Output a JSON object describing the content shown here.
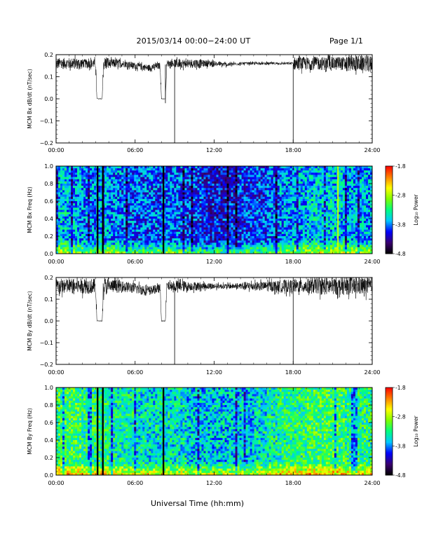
{
  "header": {
    "title": "2015/03/14  00:00−24:00 UT",
    "page": "Page 1/1"
  },
  "xaxis": {
    "label": "Universal Time (hh:mm)",
    "ticks": [
      "00:00",
      "06:00",
      "12:00",
      "18:00",
      "24:00"
    ]
  },
  "colorbar": {
    "label": "Log₁₀ Power",
    "ticks": [
      "-1.8",
      "-2.8",
      "-3.8",
      "-4.8"
    ],
    "range": [
      -4.8,
      -1.8
    ],
    "colors": [
      "#000000",
      "#3a0070",
      "#0000ff",
      "#00c8ff",
      "#00ff80",
      "#80ff00",
      "#ffff00",
      "#ff8000",
      "#ff0000"
    ]
  },
  "chart_data": [
    {
      "type": "line",
      "ylabel": "MCM Bx dB/dt (nT/sec)",
      "xlim": [
        0,
        24
      ],
      "ylim": [
        -0.2,
        0.2
      ],
      "yticks": [
        "0.2",
        "0.1",
        "0.0",
        "−0.1",
        "−0.2"
      ],
      "series": [
        {
          "baseline": 0.155,
          "x": [
            0,
            1,
            2,
            3,
            3.1,
            3.5,
            3.6,
            4,
            5,
            6,
            7,
            7.9,
            8.0,
            8.3,
            8.4,
            9,
            10,
            11,
            12,
            13,
            14,
            15,
            16,
            17,
            18,
            19,
            20,
            21,
            22,
            23,
            24
          ],
          "y": [
            0.16,
            0.16,
            0.16,
            0.16,
            0.0,
            0.0,
            0.16,
            0.16,
            0.16,
            0.15,
            0.14,
            0.15,
            0.0,
            0.0,
            0.16,
            0.16,
            0.16,
            0.16,
            0.16,
            0.155,
            0.16,
            0.16,
            0.16,
            0.16,
            0.16,
            0.16,
            0.16,
            0.16,
            0.16,
            0.16,
            0.16
          ],
          "spikes": [
            {
              "x": 9.0,
              "y": -0.2
            },
            {
              "x": 18.0,
              "y": -0.2
            },
            {
              "x": 8.3,
              "y": -0.02
            }
          ],
          "noise_amplitude": [
            0.025,
            0.025,
            0.02,
            0.03,
            0.02,
            0.015,
            0.015,
            0.015,
            0.015,
            0.02,
            0.02,
            0.015,
            0.01,
            0.008,
            0.006,
            0.006,
            0.006,
            0.006,
            0.03,
            0.03,
            0.03,
            0.03,
            0.035,
            0.035
          ]
        }
      ]
    },
    {
      "type": "heatmap",
      "ylabel": "MCM Bx Freq (Hz)",
      "xlim": [
        0,
        24
      ],
      "ylim": [
        0.0,
        1.0
      ],
      "yticks": [
        "1.0",
        "0.8",
        "0.6",
        "0.4",
        "0.2",
        "0.0"
      ],
      "zlim": [
        -4.8,
        -1.8
      ],
      "mean_level_by_hour": [
        -3.6,
        -3.7,
        -3.8,
        -3.7,
        -3.8,
        -3.9,
        -3.9,
        -3.9,
        -3.9,
        -3.9,
        -4.0,
        -4.1,
        -4.1,
        -4.1,
        -4.0,
        -4.0,
        -3.9,
        -3.8,
        -3.7,
        -3.6,
        -3.6,
        -3.6,
        -3.7,
        -3.7
      ],
      "gaps_hours": [
        3.15,
        3.55,
        8.15
      ],
      "bright_line_hour": 21.4,
      "harmonic_lines_hz": [
        0.1,
        0.2,
        0.3,
        0.4,
        0.5,
        0.6,
        0.7,
        0.8,
        0.9,
        1.0
      ]
    },
    {
      "type": "line",
      "ylabel": "MCM By dB/dt (nT/sec)",
      "xlim": [
        0,
        24
      ],
      "ylim": [
        -0.2,
        0.2
      ],
      "yticks": [
        "0.2",
        "0.1",
        "0.0",
        "−0.1",
        "−0.2"
      ],
      "series": [
        {
          "baseline": 0.16,
          "x": [
            0,
            1,
            2,
            3,
            3.1,
            3.5,
            3.6,
            4,
            5,
            6,
            7,
            7.9,
            8.0,
            8.3,
            8.4,
            9,
            10,
            11,
            12,
            13,
            14,
            15,
            16,
            17,
            18,
            19,
            20,
            21,
            22,
            23,
            24
          ],
          "y": [
            0.16,
            0.16,
            0.16,
            0.16,
            0.0,
            0.0,
            0.16,
            0.16,
            0.16,
            0.15,
            0.14,
            0.15,
            0.0,
            0.0,
            0.16,
            0.16,
            0.16,
            0.16,
            0.16,
            0.16,
            0.16,
            0.16,
            0.16,
            0.16,
            0.16,
            0.16,
            0.16,
            0.16,
            0.16,
            0.16,
            0.16
          ],
          "spikes": [
            {
              "x": 9.0,
              "y": -0.2
            },
            {
              "x": 18.0,
              "y": -0.2
            }
          ],
          "noise_amplitude": [
            0.035,
            0.035,
            0.035,
            0.04,
            0.03,
            0.025,
            0.025,
            0.02,
            0.02,
            0.025,
            0.02,
            0.015,
            0.012,
            0.012,
            0.02,
            0.02,
            0.025,
            0.03,
            0.03,
            0.035,
            0.04,
            0.04,
            0.04,
            0.04
          ]
        }
      ]
    },
    {
      "type": "heatmap",
      "ylabel": "MCM By Freq (Hz)",
      "xlim": [
        0,
        24
      ],
      "ylim": [
        0.0,
        1.0
      ],
      "yticks": [
        "1.0",
        "0.8",
        "0.6",
        "0.4",
        "0.2",
        "0.0"
      ],
      "zlim": [
        -4.8,
        -1.8
      ],
      "mean_level_by_hour": [
        -3.2,
        -3.2,
        -3.3,
        -3.3,
        -3.4,
        -3.4,
        -3.5,
        -3.5,
        -3.5,
        -3.5,
        -3.6,
        -3.6,
        -3.6,
        -3.6,
        -3.6,
        -3.5,
        -3.4,
        -3.3,
        -3.3,
        -3.2,
        -3.2,
        -3.2,
        -3.3,
        -3.3
      ],
      "gaps_hours": [
        3.15,
        3.55,
        8.15
      ],
      "bright_line_hour": null,
      "harmonic_lines_hz": [
        0.1,
        0.2,
        0.3,
        0.4,
        0.5,
        0.6,
        0.7,
        0.8,
        0.9,
        1.0
      ]
    }
  ]
}
